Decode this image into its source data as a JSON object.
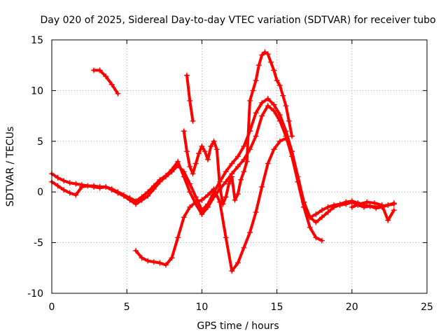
{
  "chart_data": {
    "type": "scatter",
    "title": "Day 020 of 2025, Sidereal Day-to-day VTEC variation (SDTVAR) for receiver tubo",
    "xlabel": "GPS time / hours",
    "ylabel": "SDTVAR / TECUs",
    "xlim": [
      0,
      25
    ],
    "ylim": [
      -10,
      15
    ],
    "x_ticks": [
      "0",
      "5",
      "10",
      "15",
      "20",
      "25"
    ],
    "y_ticks": [
      "-10",
      "-5",
      "0",
      "5",
      "10",
      "15"
    ],
    "grid": true,
    "marker": "+",
    "color": "#ff0000",
    "series": [
      {
        "name": "s1",
        "x": [
          0.0,
          0.4,
          0.8,
          1.2,
          1.6,
          2.0,
          2.4,
          2.8,
          3.2,
          3.6,
          4.0,
          4.4,
          4.8,
          5.2,
          5.6,
          6.0,
          6.4,
          6.8,
          7.2,
          7.6,
          8.0,
          8.4,
          8.8,
          9.2,
          9.6,
          10.0,
          10.4,
          10.8,
          11.2,
          11.6,
          12.0,
          12.4,
          12.8,
          13.2,
          13.6,
          14.0,
          14.4,
          14.8,
          15.2,
          15.6,
          16.0,
          16.4,
          16.8,
          17.2,
          17.6,
          18.0
        ],
        "y": [
          1.8,
          1.4,
          1.1,
          0.9,
          0.8,
          0.7,
          0.6,
          0.6,
          0.5,
          0.5,
          0.3,
          0.0,
          -0.3,
          -0.6,
          -0.9,
          -0.5,
          0.0,
          0.6,
          1.2,
          1.6,
          2.2,
          3.0,
          1.5,
          0.0,
          -1.2,
          -2.2,
          -1.5,
          -0.5,
          0.3,
          1.0,
          1.8,
          2.5,
          3.2,
          4.2,
          5.5,
          7.5,
          8.5,
          8.0,
          7.0,
          5.5,
          3.5,
          1.0,
          -1.5,
          -3.5,
          -4.5,
          -4.8
        ]
      },
      {
        "name": "s2",
        "x": [
          0.0,
          0.4,
          0.8,
          1.2,
          1.6,
          2.0,
          2.4,
          2.8,
          3.2,
          3.6,
          4.0,
          4.4,
          4.8,
          5.2,
          5.6,
          6.0,
          6.4,
          6.8,
          7.2,
          7.6,
          8.0,
          8.4,
          8.8,
          9.2,
          9.6,
          10.0,
          10.4,
          10.8,
          11.2,
          11.6,
          12.0,
          12.4,
          12.8,
          13.2,
          13.6,
          14.0,
          14.4,
          14.8,
          15.2,
          15.6,
          16.0,
          16.4,
          16.8,
          17.2,
          17.6,
          18.0,
          18.4,
          18.8,
          19.2,
          19.6,
          20.0,
          20.4,
          20.8,
          21.2,
          21.6,
          22.0,
          22.4,
          22.8
        ],
        "y": [
          1.0,
          0.6,
          0.2,
          -0.1,
          -0.3,
          0.5,
          0.6,
          0.5,
          0.4,
          0.5,
          0.2,
          -0.1,
          -0.4,
          -0.8,
          -1.2,
          -0.8,
          -0.4,
          0.3,
          1.0,
          1.5,
          2.0,
          2.6,
          2.0,
          0.8,
          -0.5,
          -1.8,
          -1.2,
          0.0,
          1.0,
          2.0,
          2.8,
          3.5,
          4.5,
          6.0,
          7.8,
          8.8,
          9.2,
          8.6,
          7.6,
          6.0,
          4.0,
          1.5,
          -1.0,
          -2.5,
          -3.0,
          -2.5,
          -2.0,
          -1.5,
          -1.3,
          -1.2,
          -1.0,
          -1.3,
          -1.5,
          -1.4,
          -1.6,
          -1.5,
          -1.3,
          -1.1
        ]
      },
      {
        "name": "s3",
        "x": [
          5.6,
          6.0,
          6.4,
          6.8,
          7.2,
          7.6,
          8.0,
          8.4,
          8.8,
          9.2,
          9.6,
          10.0,
          10.4,
          10.8,
          11.2,
          11.6,
          12.0,
          12.4,
          12.8,
          13.2,
          13.6,
          14.0,
          14.4,
          14.8,
          15.2,
          15.6,
          16.0,
          16.4,
          16.8,
          17.2,
          17.6,
          18.0,
          18.4,
          18.8,
          19.2,
          19.6,
          20.0,
          20.4,
          20.8,
          21.2,
          21.6,
          22.0,
          22.4,
          22.8
        ],
        "y": [
          -5.8,
          -6.5,
          -6.8,
          -6.9,
          -7.0,
          -7.2,
          -6.5,
          -4.5,
          -2.5,
          -1.5,
          -1.0,
          -0.8,
          -0.3,
          0.3,
          -1.0,
          -4.5,
          -7.8,
          -7.0,
          -5.5,
          -4.0,
          -2.0,
          0.5,
          2.8,
          4.2,
          5.0,
          5.3,
          4.0,
          1.0,
          -1.5,
          -2.5,
          -2.2,
          -1.8,
          -1.5,
          -1.3,
          -1.2,
          -1.0,
          -0.9,
          -1.1,
          -1.3,
          -1.4,
          -1.5,
          -1.4,
          -1.3,
          -1.2
        ]
      },
      {
        "name": "s4",
        "x": [
          8.8,
          9.0,
          9.2,
          9.4,
          9.6,
          9.8,
          10.0,
          10.2,
          10.4,
          10.6,
          10.8,
          11.0,
          11.2,
          11.4,
          11.6,
          11.8,
          12.0,
          12.2,
          12.4,
          12.6,
          12.8,
          13.0,
          13.2,
          13.4,
          13.6,
          13.8,
          14.0,
          14.2,
          14.4,
          14.6,
          14.8,
          15.0,
          15.2,
          15.4,
          15.6,
          15.8,
          16.0
        ],
        "y": [
          6.0,
          4.0,
          2.5,
          1.8,
          2.8,
          3.8,
          4.5,
          4.0,
          3.2,
          4.5,
          5.0,
          4.2,
          0.5,
          -1.2,
          -0.5,
          0.8,
          1.5,
          -0.8,
          -0.2,
          1.2,
          2.0,
          3.0,
          9.0,
          10.0,
          11.0,
          12.5,
          13.5,
          13.8,
          13.6,
          12.8,
          12.0,
          11.0,
          10.5,
          9.5,
          8.5,
          7.0,
          5.5
        ]
      },
      {
        "name": "s5",
        "x": [
          2.8,
          3.2,
          3.6,
          4.0,
          4.4
        ],
        "y": [
          12.0,
          12.0,
          11.4,
          10.6,
          9.7
        ]
      },
      {
        "name": "s6",
        "x": [
          9.0,
          9.2,
          9.4
        ],
        "y": [
          11.5,
          9.0,
          7.0
        ]
      },
      {
        "name": "s7",
        "x": [
          20.0,
          20.5,
          21.0,
          21.5,
          22.0,
          22.4,
          22.8
        ],
        "y": [
          -1.5,
          -1.2,
          -1.0,
          -1.1,
          -1.3,
          -2.8,
          -1.8
        ]
      }
    ]
  }
}
